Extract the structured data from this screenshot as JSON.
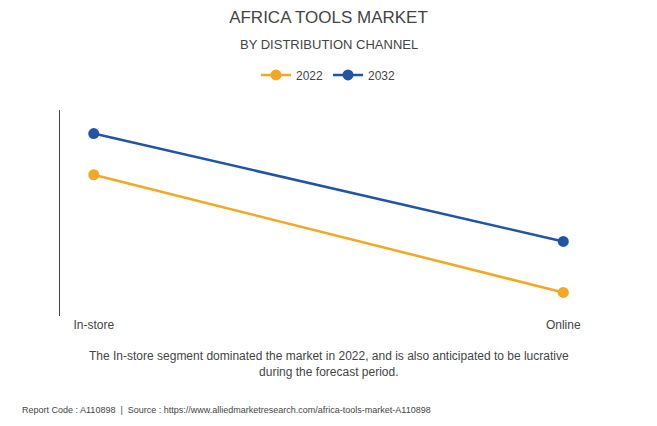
{
  "chart_data": {
    "type": "line",
    "title": "AFRICA TOOLS MARKET",
    "subtitle": "BY DISTRIBUTION CHANNEL",
    "categories": [
      "In-store",
      "Online"
    ],
    "series": [
      {
        "name": "2022",
        "color": "#f5a623",
        "values": [
          0.72,
          0.12
        ]
      },
      {
        "name": "2032",
        "color": "#2155a3",
        "values": [
          0.93,
          0.38
        ]
      }
    ],
    "ylim": [
      0.0,
      1.05
    ],
    "yticks": [],
    "grid": false,
    "tick_labels": "x",
    "legend": "top",
    "marker": "circle",
    "annotations": [
      "The In-store segment dominated the market in 2022, and is also anticipated to be lucrative\nduring the forecast period.",
      "Report Code : A110898  |  Source : https://www.alliedmarketresearch.com/africa-tools-market-A110898"
    ]
  }
}
